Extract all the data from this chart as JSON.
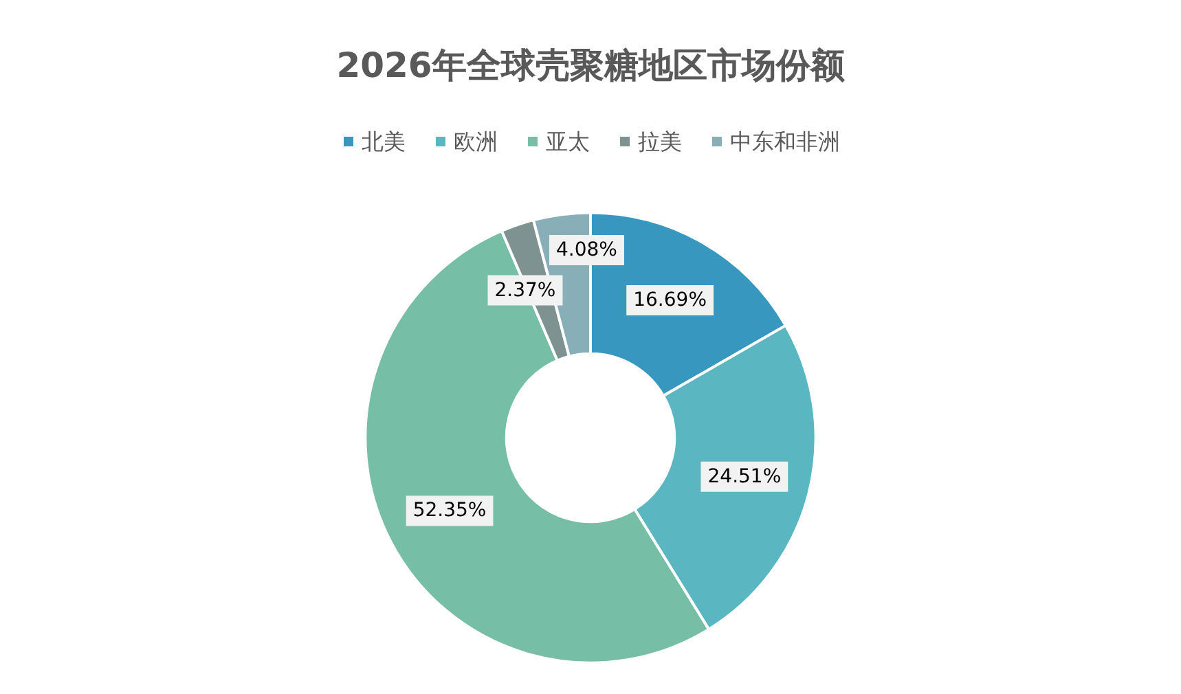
{
  "chart_data": {
    "type": "donut",
    "title": "2026年全球壳聚糖地区市场份额",
    "categories": [
      "北美",
      "欧洲",
      "亚太",
      "拉美",
      "中东和非洲"
    ],
    "values": [
      16.69,
      24.51,
      52.35,
      2.37,
      4.08
    ],
    "value_labels": [
      "16.69%",
      "24.51%",
      "52.35%",
      "2.37%",
      "4.08%"
    ],
    "colors": [
      "#3797be",
      "#5ab6c0",
      "#77bea6",
      "#7e9292",
      "#88aeb8"
    ],
    "legend": "top"
  }
}
